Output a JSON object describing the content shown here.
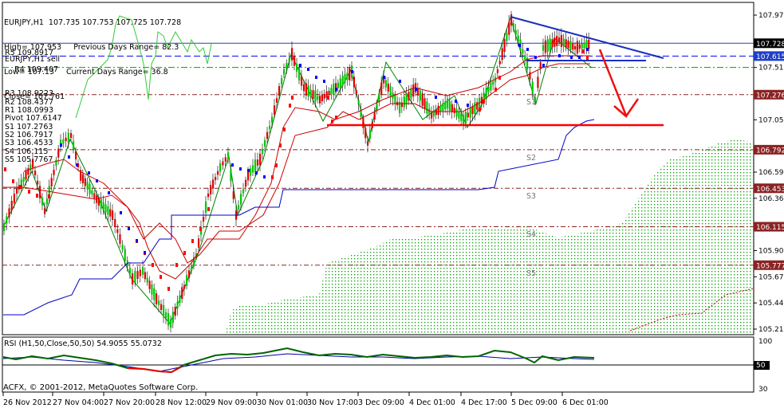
{
  "header": {
    "symbol_line": "EURJPY,H1  107.735 107.753 107.725 107.728",
    "high_line": "High= 107.953     Previous Days Range= 82.3",
    "low_line": "Low= 107.13     Current Days Range= 36.8",
    "close_line": "Close= 107.761",
    "overlap_line": "EURJPY,H1 sell"
  },
  "pivot_levels": [
    {
      "label": "R5 109.8917"
    },
    {
      "label": "R4 109.407"
    },
    {
      "label": "R3 108.9223"
    },
    {
      "label": "R2 108.4377"
    },
    {
      "label": "R1 108.0993"
    },
    {
      "label": "Pivot 107.6147"
    },
    {
      "label": "S1 107.2763"
    },
    {
      "label": "S2 106.7917"
    },
    {
      "label": "S3 106.4533"
    },
    {
      "label": "S4 106.115"
    },
    {
      "label": "S5 105.7767"
    }
  ],
  "chart_labels": {
    "s1": "S1",
    "s2": "S2",
    "s3": "S3",
    "s4": "S4",
    "s5": "S5"
  },
  "price_axis": {
    "ticks": [
      "107.975",
      "107.515",
      "107.055",
      "106.595",
      "106.365",
      "105.905",
      "105.675",
      "105.445",
      "105.215"
    ],
    "tags": [
      {
        "value": "107.728",
        "bg": "#000000"
      },
      {
        "value": "107.615",
        "bg": "#1f3ec7"
      },
      {
        "value": "107.276",
        "bg": "#8b2323"
      },
      {
        "value": "106.792",
        "bg": "#8b2323"
      },
      {
        "value": "106.453",
        "bg": "#8b2323"
      },
      {
        "value": "106.115",
        "bg": "#8b2323"
      },
      {
        "value": "105.777",
        "bg": "#8b2323"
      }
    ]
  },
  "time_axis": {
    "labels": [
      "26 Nov 2012",
      "27 Nov 04:00",
      "27 Nov 20:00",
      "28 Nov 12:00",
      "29 Nov 09:00",
      "30 Nov 01:00",
      "30 Nov 17:00",
      "3 Dec 09:00",
      "4 Dec 01:00",
      "4 Dec 17:00",
      "5 Dec 09:00",
      "6 Dec 01:00"
    ]
  },
  "rsi": {
    "title": "RSI (H1,50,Close,50,50) 54.9055 55.0732",
    "ticks": [
      "100",
      "50",
      "30"
    ]
  },
  "copyright": "ACFX, © 2001-2012, MetaQuotes Software Corp.",
  "colors": {
    "bull": "#00c800",
    "bear": "#e00000",
    "pivot": "#8b2323",
    "blue_line": "#0000c8",
    "psar_red": "#ff0000",
    "psar_blue": "#0000ff",
    "cloud": "#00a000",
    "trend": "#1a2fbf",
    "support": "#ff0000"
  },
  "chart_data": {
    "type": "line",
    "title": "EURJPY,H1",
    "x": [
      "26 Nov 2012",
      "27 Nov 04:00",
      "27 Nov 20:00",
      "28 Nov 12:00",
      "29 Nov 09:00",
      "30 Nov 01:00",
      "30 Nov 17:00",
      "3 Dec 09:00",
      "4 Dec 01:00",
      "4 Dec 17:00",
      "5 Dec 09:00",
      "6 Dec 01:00"
    ],
    "series": [
      {
        "values": [
          106.65,
          106.85,
          106.2,
          105.45,
          106.7,
          107.65,
          107.2,
          107.45,
          107.15,
          107.25,
          107.8,
          107.73
        ]
      }
    ],
    "ylim": [
      105.215,
      107.975
    ],
    "grid": false
  }
}
